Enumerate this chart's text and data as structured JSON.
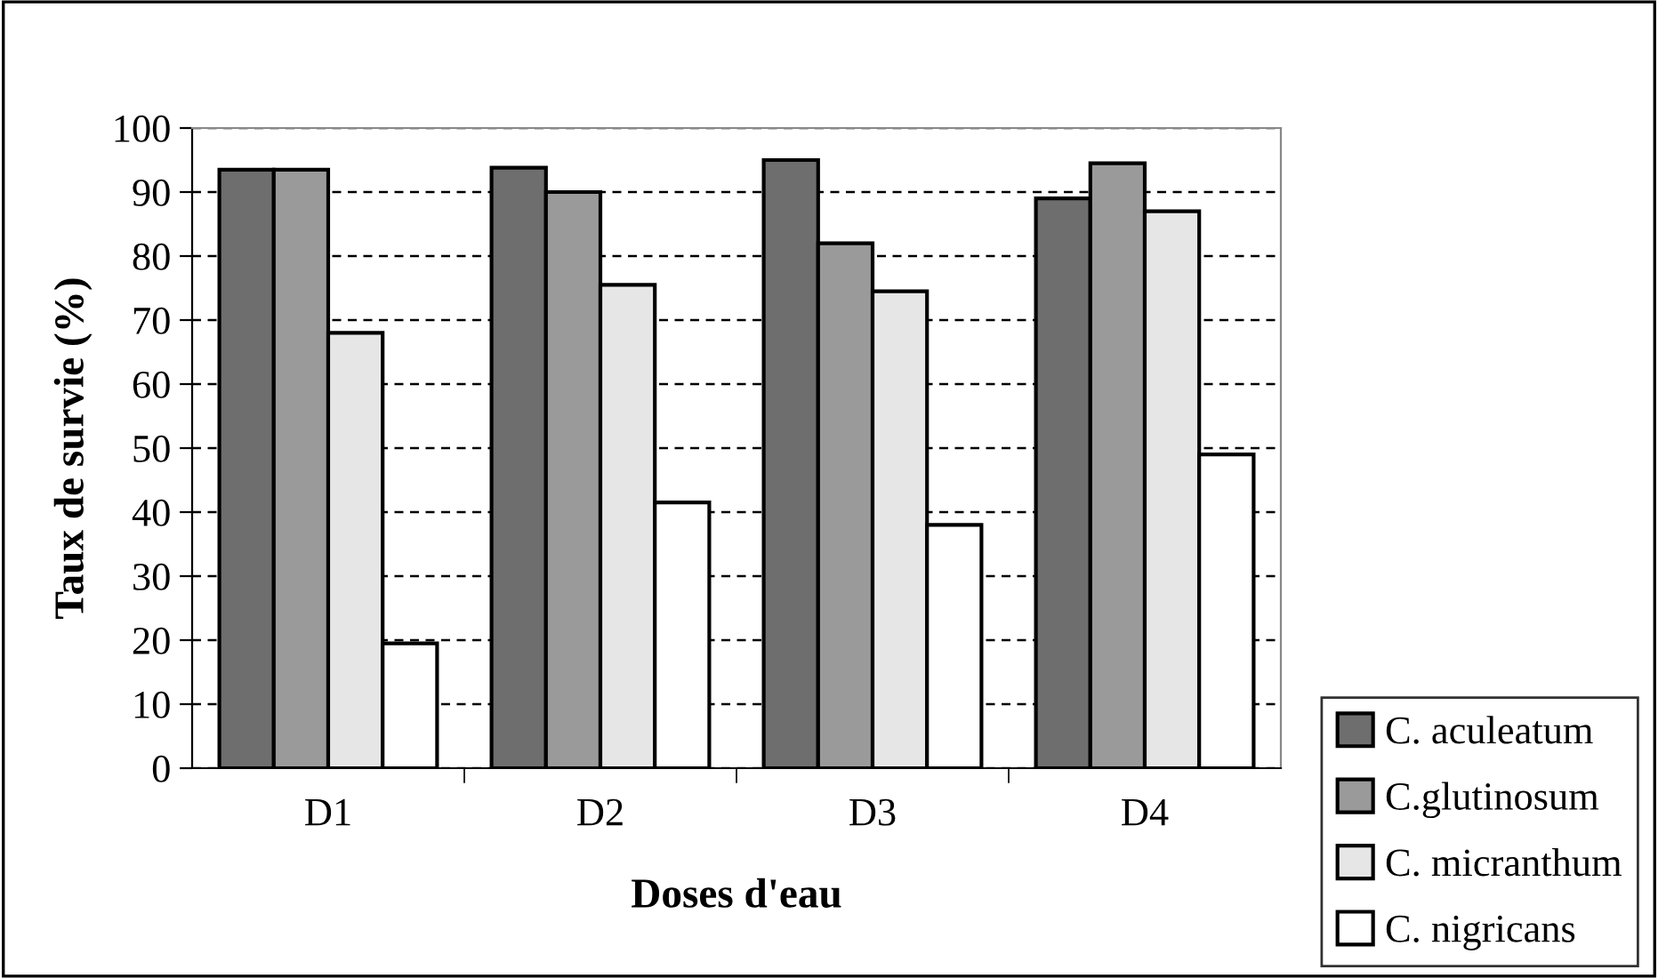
{
  "chart_data": {
    "type": "bar",
    "xlabel": "Doses d'eau",
    "ylabel": "Taux de survie (%)",
    "categories": [
      "D1",
      "D2",
      "D3",
      "D4"
    ],
    "series": [
      {
        "name": "C. aculeatum",
        "color": "#6e6e6e",
        "values": [
          93.5,
          93.8,
          95,
          89
        ]
      },
      {
        "name": "C.glutinosum",
        "color": "#9a9a9a",
        "values": [
          93.5,
          90,
          82,
          94.5
        ]
      },
      {
        "name": "C. micranthum",
        "color": "#e6e6e6",
        "values": [
          68,
          75.5,
          74.5,
          87
        ]
      },
      {
        "name": "C. nigricans",
        "color": "#ffffff",
        "values": [
          19.5,
          41.5,
          38,
          49
        ]
      }
    ],
    "ylim": [
      0,
      100
    ],
    "yticks": [
      0,
      10,
      20,
      30,
      40,
      50,
      60,
      70,
      80,
      90,
      100
    ],
    "grid": "y",
    "legend": "bottom right"
  }
}
